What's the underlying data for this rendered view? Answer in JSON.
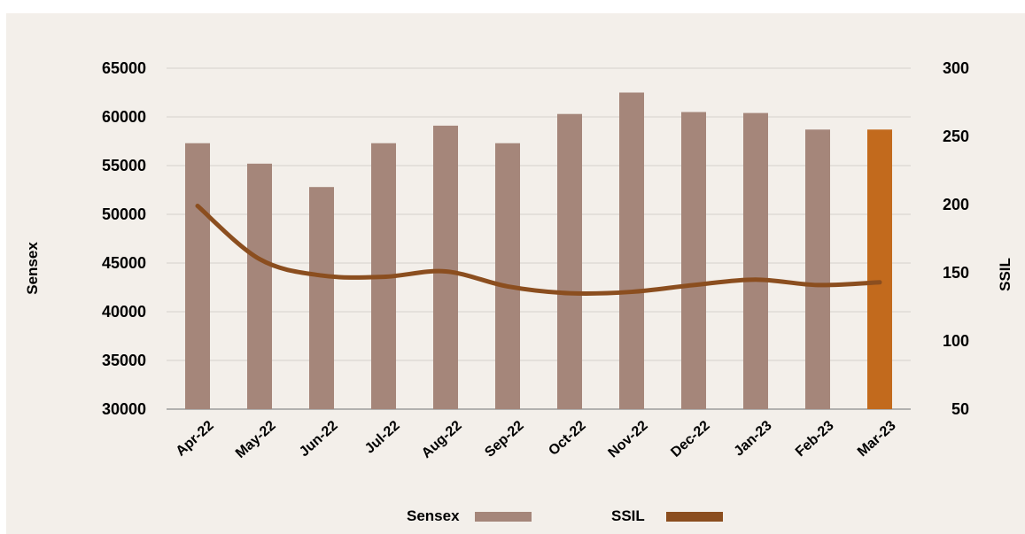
{
  "chart_data": {
    "type": "bar",
    "categories": [
      "Apr-22",
      "May-22",
      "Jun-22",
      "Jul-22",
      "Aug-22",
      "Sep-22",
      "Oct-22",
      "Nov-22",
      "Dec-22",
      "Jan-23",
      "Feb-23",
      "Mar-23"
    ],
    "series": [
      {
        "name": "Sensex",
        "type": "bar",
        "axis": "left",
        "values": [
          57300,
          55200,
          52800,
          57300,
          59100,
          57300,
          60300,
          62500,
          60500,
          60400,
          58700,
          58700
        ],
        "color": "#a5867a",
        "highlight_color": "#c26a1d",
        "highlight_index": 11
      },
      {
        "name": "SSIL",
        "type": "line",
        "axis": "right",
        "values": [
          199,
          160,
          148,
          147,
          151,
          140,
          135,
          136,
          141,
          145,
          141,
          143
        ],
        "color": "#8b4e1f"
      }
    ],
    "ylabel": "Sensex",
    "y2label": "SSIL",
    "ylim": [
      30000,
      65000
    ],
    "yticks": [
      30000,
      35000,
      40000,
      45000,
      50000,
      55000,
      60000,
      65000
    ],
    "y2lim": [
      50,
      300
    ],
    "y2ticks": [
      50,
      100,
      150,
      200,
      250,
      300
    ],
    "grid": true,
    "legend": "bottom-center"
  }
}
